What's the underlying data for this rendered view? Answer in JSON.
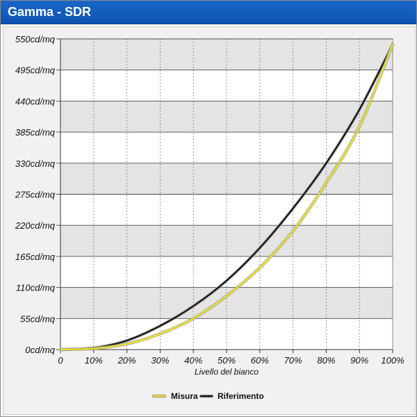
{
  "header": {
    "title": "Gamma - SDR"
  },
  "colors": {
    "title_bar": "#0d53b0",
    "band": "#e4e4e4",
    "measure": "#f2e21a",
    "reference": "#111111"
  },
  "chart_data": {
    "type": "line",
    "xlabel": "Livello del bianco",
    "ylabel": "",
    "xlim": [
      0,
      100
    ],
    "ylim": [
      0,
      550
    ],
    "x_tick_labels": [
      "0",
      "10%",
      "20%",
      "30%",
      "40%",
      "50%",
      "60%",
      "70%",
      "80%",
      "90%",
      "100%"
    ],
    "y_tick_labels": [
      "0cd/mq",
      "55cd/mq",
      "110cd/mq",
      "165cd/mq",
      "220cd/mq",
      "275cd/mq",
      "330cd/mq",
      "385cd/mq",
      "440cd/mq",
      "495cd/mq",
      "550cd/mq"
    ],
    "y_tick_values": [
      0,
      55,
      110,
      165,
      220,
      275,
      330,
      385,
      440,
      495,
      550
    ],
    "x_tick_values": [
      0,
      10,
      20,
      30,
      40,
      50,
      60,
      70,
      80,
      90,
      100
    ],
    "x": [
      0,
      10,
      20,
      30,
      40,
      50,
      60,
      70,
      80,
      90,
      100
    ],
    "series": [
      {
        "name": "Misura",
        "color": "#f2e21a",
        "values": [
          0,
          2,
          10,
          28,
          55,
          95,
          145,
          210,
          295,
          395,
          540
        ]
      },
      {
        "name": "Riferimento",
        "color": "#111111",
        "values": [
          0,
          3,
          16,
          42,
          77,
          122,
          180,
          250,
          330,
          425,
          540
        ]
      }
    ],
    "grid": true,
    "legend_position": "bottom"
  }
}
